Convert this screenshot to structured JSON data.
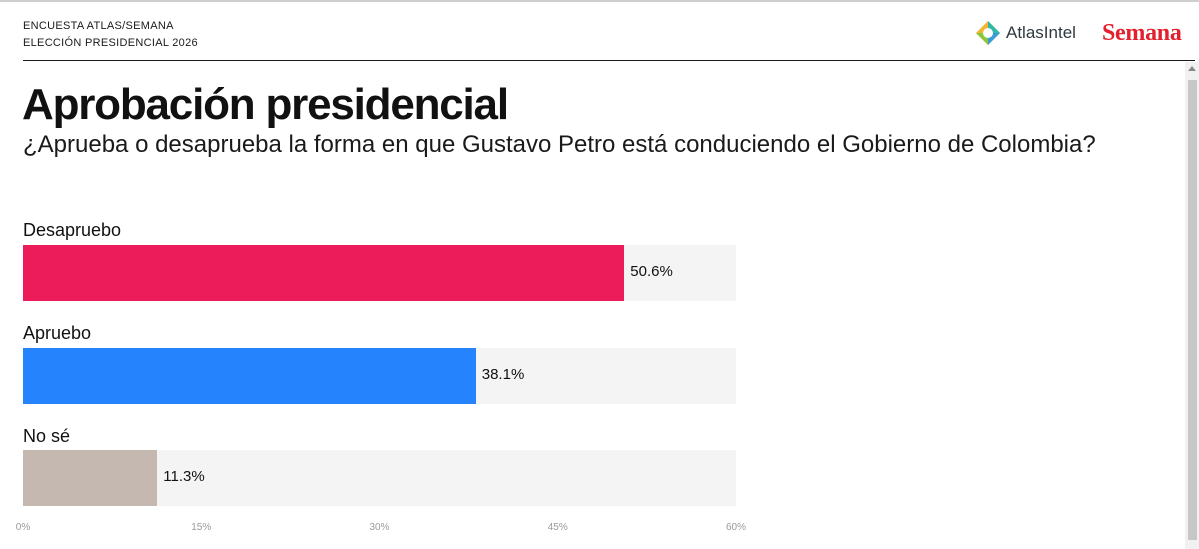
{
  "header": {
    "kicker_line1": "ENCUESTA ATLAS/SEMANA",
    "kicker_line2": "ELECCIÓN PRESIDENCIAL 2026",
    "brand_atlas": "AtlasIntel",
    "brand_semana": "Semana"
  },
  "colors": {
    "desapruebo": "#ec1c5b",
    "apruebo": "#2683fe",
    "no_se": "#c4b8b0",
    "track": "#f4f4f4",
    "semana_red": "#e2202e"
  },
  "chart_data": {
    "type": "bar",
    "orientation": "horizontal",
    "title": "Aprobación presidencial",
    "subtitle": "¿Aprueba o desaprueba la forma en que Gustavo Petro está conduciendo el Gobierno de Colombia?",
    "categories": [
      "Desapruebo",
      "Apruebo",
      "No sé"
    ],
    "values": [
      50.6,
      38.1,
      11.3
    ],
    "value_labels": [
      "50.6%",
      "38.1%",
      "11.3%"
    ],
    "xlim": [
      0,
      60
    ],
    "xticks": [
      0,
      15,
      30,
      45,
      60
    ],
    "xtick_labels": [
      "0%",
      "15%",
      "30%",
      "45%",
      "60%"
    ],
    "grid": false,
    "legend": "none"
  }
}
